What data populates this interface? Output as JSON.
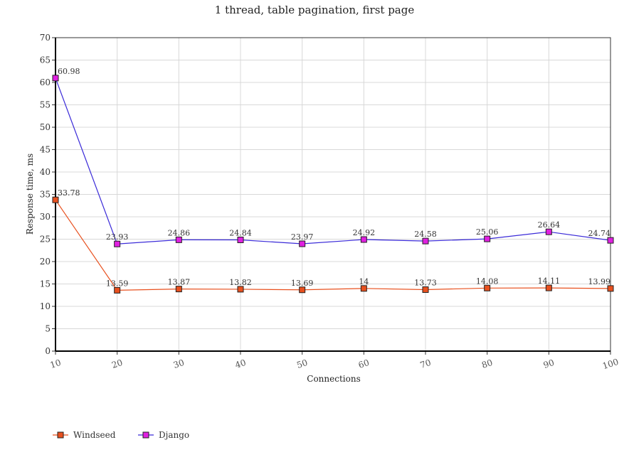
{
  "chart_data": {
    "type": "line",
    "title": "1 thread, table pagination, first page",
    "xlabel": "Connections",
    "ylabel": "Response time, ms",
    "x": [
      10,
      20,
      30,
      40,
      50,
      60,
      70,
      80,
      90,
      100
    ],
    "xlim": [
      10,
      100
    ],
    "ylim": [
      0,
      70
    ],
    "yticks": [
      0,
      5,
      10,
      15,
      20,
      25,
      30,
      35,
      40,
      45,
      50,
      55,
      60,
      65,
      70
    ],
    "grid": true,
    "legend_position": "bottom-left",
    "series": [
      {
        "name": "Windseed",
        "color": "#e8501e",
        "marker_color": "#e8501e",
        "values": [
          33.78,
          13.59,
          13.87,
          13.82,
          13.69,
          14,
          13.73,
          14.08,
          14.11,
          13.99
        ],
        "labels": [
          "33.78",
          "13.59",
          "13.87",
          "13.82",
          "13.69",
          "14",
          "13.73",
          "14.08",
          "14.11",
          "13.99"
        ]
      },
      {
        "name": "Django",
        "color": "#3a2ad8",
        "marker_color": "#e020e0",
        "values": [
          60.98,
          23.93,
          24.86,
          24.84,
          23.97,
          24.92,
          24.58,
          25.06,
          26.64,
          24.74
        ],
        "labels": [
          "60.98",
          "23.93",
          "24.86",
          "24.84",
          "23.97",
          "24.92",
          "24.58",
          "25.06",
          "26.64",
          "24.74"
        ]
      }
    ]
  }
}
